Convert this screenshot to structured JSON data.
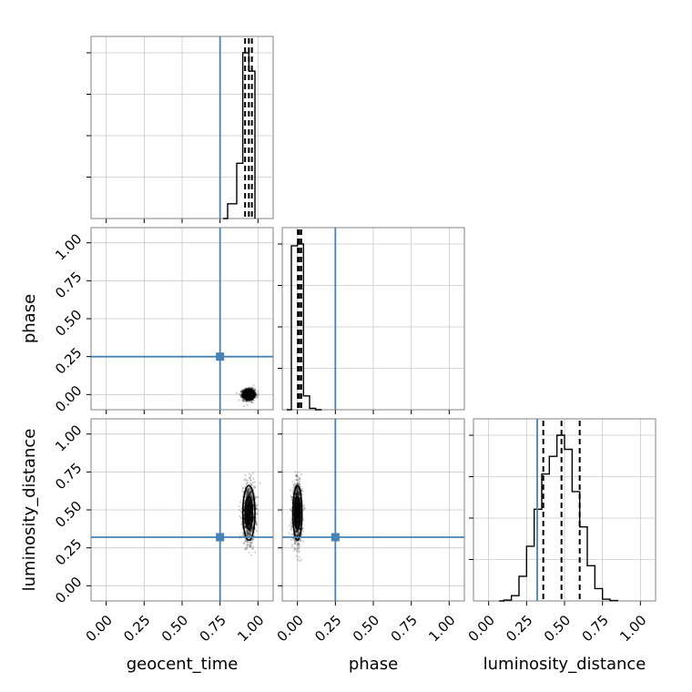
{
  "chart_data": {
    "type": "corner",
    "parameters": [
      "geocent_time",
      "phase",
      "luminosity_distance"
    ],
    "axis_range": [
      -0.1,
      1.1
    ],
    "tick_values": [
      0.0,
      0.25,
      0.5,
      0.75,
      1.0
    ],
    "tick_labels": [
      "0.00",
      "0.25",
      "0.50",
      "0.75",
      "1.00"
    ],
    "grid": true,
    "truths": {
      "geocent_time": 0.75,
      "phase": 0.25,
      "luminosity_distance": 0.32
    },
    "truth_color": "#4682b4",
    "histograms": {
      "geocent_time": {
        "bin_edges": [
          0.8,
          0.86,
          0.9,
          0.94,
          0.98
        ],
        "counts": [
          0.08,
          0.3,
          0.9,
          0.8
        ],
        "quantiles": [
          0.915,
          0.94,
          0.96
        ]
      },
      "phase": {
        "bin_edges": [
          -0.04,
          0.0,
          0.04,
          0.08,
          0.12,
          0.16
        ],
        "counts": [
          0.95,
          0.96,
          0.08,
          0.008,
          0.0
        ],
        "quantiles": [
          0.003,
          0.012,
          0.025
        ]
      },
      "luminosity_distance": {
        "bin_edges": [
          0.1,
          0.15,
          0.2,
          0.25,
          0.3,
          0.35,
          0.4,
          0.45,
          0.5,
          0.55,
          0.6,
          0.65,
          0.7,
          0.75,
          0.8,
          0.85
        ],
        "counts": [
          0.005,
          0.03,
          0.14,
          0.31,
          0.52,
          0.72,
          0.82,
          0.94,
          0.86,
          0.62,
          0.42,
          0.2,
          0.07,
          0.01,
          0.002
        ],
        "quantiles": [
          0.36,
          0.48,
          0.6
        ]
      }
    },
    "joint": [
      {
        "x": "geocent_time",
        "y": "phase",
        "center": [
          0.94,
          0.0
        ],
        "spread": [
          0.02,
          0.018
        ]
      },
      {
        "x": "geocent_time",
        "y": "luminosity_distance",
        "center": [
          0.94,
          0.48
        ],
        "spread": [
          0.02,
          0.09
        ]
      },
      {
        "x": "phase",
        "y": "luminosity_distance",
        "center": [
          0.0,
          0.48
        ],
        "spread": [
          0.015,
          0.09
        ]
      }
    ]
  }
}
